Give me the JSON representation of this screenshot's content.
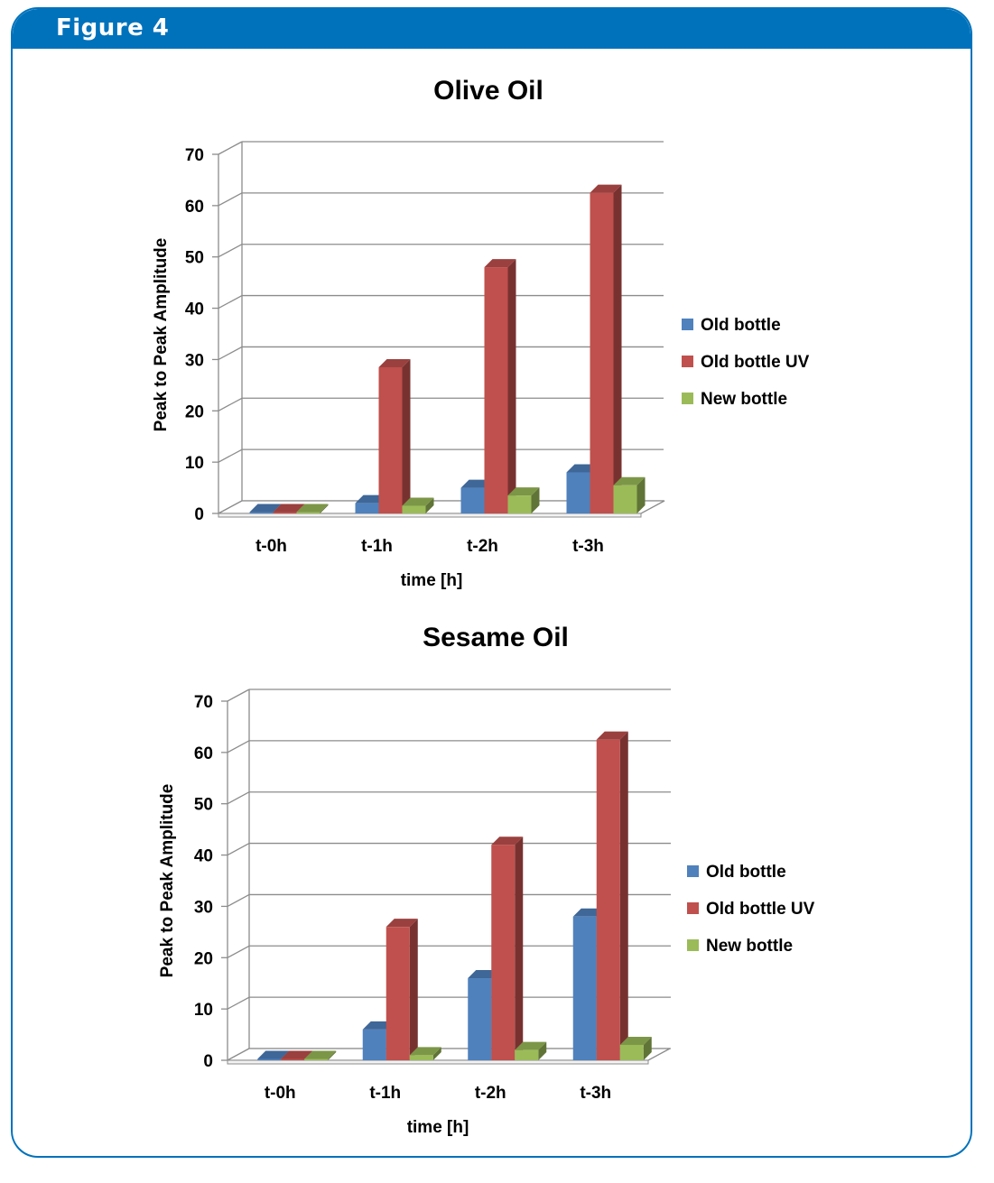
{
  "figure": {
    "label": "Figure 4"
  },
  "chart_data": [
    {
      "type": "bar",
      "title": "Olive Oil",
      "xlabel": "time [h]",
      "ylabel": "Peak to Peak Amplitude",
      "categories": [
        "t-0h",
        "t-1h",
        "t-2h",
        "t-3h"
      ],
      "ylim": [
        0,
        70
      ],
      "yticks": [
        0,
        10,
        20,
        30,
        40,
        50,
        60,
        70
      ],
      "grid": true,
      "legend_position": "right",
      "series": [
        {
          "name": "Old bottle",
          "color": "#4f81bd",
          "values": [
            0,
            2,
            5,
            8
          ]
        },
        {
          "name": "Old bottle UV",
          "color": "#c0504d",
          "values": [
            0,
            28.5,
            48,
            62.5
          ]
        },
        {
          "name": "New bottle",
          "color": "#9bbb59",
          "values": [
            0,
            1.5,
            3.5,
            5.5
          ]
        }
      ]
    },
    {
      "type": "bar",
      "title": "Sesame Oil",
      "xlabel": "time [h]",
      "ylabel": "Peak to Peak Amplitude",
      "categories": [
        "t-0h",
        "t-1h",
        "t-2h",
        "t-3h"
      ],
      "ylim": [
        0,
        70
      ],
      "yticks": [
        0,
        10,
        20,
        30,
        40,
        50,
        60,
        70
      ],
      "grid": true,
      "legend_position": "right",
      "series": [
        {
          "name": "Old bottle",
          "color": "#4f81bd",
          "values": [
            0,
            6,
            16,
            28
          ]
        },
        {
          "name": "Old bottle UV",
          "color": "#c0504d",
          "values": [
            0,
            26,
            42,
            62.5
          ]
        },
        {
          "name": "New bottle",
          "color": "#9bbb59",
          "values": [
            0,
            1,
            2,
            3
          ]
        }
      ]
    }
  ]
}
